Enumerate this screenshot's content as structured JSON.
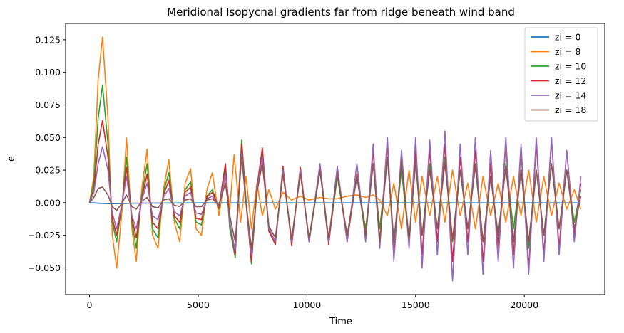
{
  "chart_data": {
    "type": "line",
    "title": "Meridional Isopycnal gradients far from ridge beneath wind band",
    "xlabel": "Time",
    "ylabel": "e",
    "xlim": [
      -1100,
      23700
    ],
    "ylim": [
      -0.0705,
      0.1375
    ],
    "xticks": [
      0,
      5000,
      10000,
      15000,
      20000
    ],
    "xtick_labels": [
      "0",
      "5000",
      "10000",
      "15000",
      "20000"
    ],
    "yticks": [
      -0.05,
      -0.025,
      0.0,
      0.025,
      0.05,
      0.075,
      0.1,
      0.125
    ],
    "ytick_labels": [
      "−0.050",
      "−0.025",
      "0.000",
      "0.025",
      "0.050",
      "0.075",
      "0.100",
      "0.125"
    ],
    "grid": false,
    "legend_position": "top-right",
    "series": [
      {
        "name": "zi = 0",
        "color": "#1f77b4",
        "x": [
          0,
          200,
          400,
          600,
          800,
          1000,
          1500,
          2000,
          3000,
          5000,
          8000,
          12000,
          16000,
          20000,
          22600
        ],
        "y": [
          0.0,
          -0.0002,
          -0.0004,
          -0.0006,
          -0.0007,
          -0.0008,
          -0.0006,
          -0.0004,
          -0.0003,
          -0.0002,
          -0.0002,
          -0.0002,
          -0.0002,
          -0.0002,
          -0.0002
        ]
      },
      {
        "name": "zi = 8",
        "color": "#ff7f0e",
        "x": [
          0,
          200,
          400,
          600,
          850,
          1050,
          1250,
          1500,
          1700,
          1950,
          2150,
          2400,
          2650,
          2900,
          3150,
          3400,
          3650,
          3900,
          4150,
          4400,
          4650,
          4900,
          5150,
          5400,
          5650,
          5950,
          6250,
          6450,
          6650,
          6950,
          7200,
          7450,
          7700,
          7950,
          8250,
          8550,
          8900,
          9300,
          9700,
          10100,
          10600,
          11000,
          11400,
          11850,
          12300,
          12700,
          13050,
          13350,
          13700,
          14000,
          14350,
          14700,
          15000,
          15300,
          15650,
          16000,
          16350,
          16700,
          17050,
          17400,
          17750,
          18100,
          18450,
          18800,
          19150,
          19500,
          19850,
          20200,
          20550,
          20900,
          21250,
          21600,
          21950,
          22300,
          22600
        ],
        "y": [
          0.0,
          0.02,
          0.095,
          0.127,
          0.065,
          -0.025,
          -0.05,
          -0.005,
          0.05,
          -0.02,
          -0.045,
          0.01,
          0.041,
          -0.025,
          -0.035,
          0.01,
          0.033,
          -0.015,
          -0.03,
          0.015,
          0.026,
          -0.02,
          -0.025,
          0.01,
          0.023,
          -0.01,
          0.022,
          -0.005,
          0.037,
          -0.015,
          0.02,
          -0.02,
          0.015,
          -0.01,
          0.01,
          -0.005,
          0.008,
          0.002,
          0.005,
          0.002,
          0.004,
          0.003,
          0.003,
          0.005,
          0.006,
          0.004,
          0.006,
          0.002,
          -0.01,
          0.015,
          -0.02,
          0.025,
          -0.015,
          0.02,
          -0.01,
          0.02,
          -0.015,
          0.025,
          -0.01,
          0.015,
          -0.02,
          0.02,
          -0.01,
          0.015,
          -0.015,
          0.02,
          -0.01,
          0.025,
          -0.015,
          0.02,
          -0.01,
          0.015,
          -0.005,
          0.01,
          -0.005
        ]
      },
      {
        "name": "zi = 10",
        "color": "#2ca02c",
        "x": [
          0,
          200,
          400,
          600,
          850,
          1050,
          1250,
          1500,
          1700,
          1950,
          2150,
          2400,
          2650,
          2900,
          3150,
          3400,
          3650,
          3900,
          4150,
          4400,
          4650,
          4900,
          5150,
          5400,
          5650,
          5950,
          6250,
          6450,
          6700,
          7000,
          7200,
          7450,
          7700,
          7950,
          8250,
          8550,
          8900,
          9300,
          9700,
          10100,
          10600,
          11000,
          11400,
          11850,
          12300,
          12700,
          13050,
          13350,
          13700,
          14000,
          14350,
          14700,
          15000,
          15300,
          15650,
          16000,
          16350,
          16700,
          17050,
          17400,
          17750,
          18100,
          18450,
          18800,
          19150,
          19500,
          19850,
          20200,
          20550,
          20900,
          21250,
          21600,
          21950,
          22300,
          22600
        ],
        "y": [
          0.0,
          0.015,
          0.065,
          0.09,
          0.045,
          -0.015,
          -0.03,
          0.0,
          0.035,
          -0.015,
          -0.035,
          0.005,
          0.03,
          -0.02,
          -0.027,
          0.008,
          0.023,
          -0.012,
          -0.02,
          0.01,
          0.016,
          -0.015,
          -0.017,
          0.005,
          0.01,
          -0.005,
          0.028,
          -0.02,
          -0.042,
          0.048,
          0.002,
          -0.047,
          0.01,
          0.04,
          -0.02,
          -0.03,
          0.025,
          -0.03,
          0.025,
          -0.03,
          0.025,
          -0.03,
          0.02,
          -0.025,
          0.02,
          -0.02,
          0.03,
          -0.02,
          0.035,
          -0.03,
          0.025,
          -0.03,
          0.035,
          -0.025,
          0.03,
          -0.02,
          0.035,
          -0.03,
          0.025,
          -0.02,
          0.03,
          -0.03,
          0.02,
          -0.025,
          0.03,
          -0.02,
          0.025,
          -0.035,
          0.025,
          -0.025,
          0.03,
          -0.02,
          0.025,
          -0.015,
          0.01
        ]
      },
      {
        "name": "zi = 12",
        "color": "#d62728",
        "x": [
          0,
          200,
          400,
          600,
          850,
          1050,
          1250,
          1500,
          1700,
          1950,
          2150,
          2400,
          2650,
          2900,
          3150,
          3400,
          3650,
          3900,
          4150,
          4400,
          4650,
          4900,
          5150,
          5400,
          5650,
          5950,
          6250,
          6450,
          6700,
          7000,
          7200,
          7450,
          7700,
          7950,
          8250,
          8550,
          8900,
          9300,
          9700,
          10100,
          10600,
          11000,
          11400,
          11850,
          12300,
          12700,
          13050,
          13350,
          13700,
          14000,
          14350,
          14700,
          15000,
          15300,
          15650,
          16000,
          16350,
          16700,
          17050,
          17400,
          17750,
          18100,
          18450,
          18800,
          19150,
          19500,
          19850,
          20200,
          20550,
          20900,
          21250,
          21600,
          21950,
          22300,
          22600
        ],
        "y": [
          0.0,
          0.01,
          0.045,
          0.063,
          0.035,
          -0.012,
          -0.025,
          0.0,
          0.027,
          -0.012,
          -0.027,
          0.003,
          0.022,
          -0.015,
          -0.02,
          0.006,
          0.017,
          -0.01,
          -0.015,
          0.008,
          0.012,
          -0.012,
          -0.013,
          0.004,
          0.008,
          -0.004,
          0.03,
          -0.015,
          -0.04,
          0.045,
          0.0,
          -0.045,
          0.012,
          0.042,
          -0.022,
          -0.032,
          0.028,
          -0.033,
          0.027,
          -0.03,
          0.028,
          -0.032,
          0.025,
          -0.03,
          0.022,
          -0.025,
          0.04,
          -0.03,
          0.045,
          -0.04,
          0.035,
          -0.03,
          0.04,
          -0.04,
          0.04,
          -0.03,
          0.045,
          -0.045,
          0.035,
          -0.03,
          0.04,
          -0.045,
          0.03,
          -0.035,
          0.045,
          -0.04,
          0.04,
          -0.05,
          0.045,
          -0.04,
          0.048,
          -0.035,
          0.04,
          -0.025,
          0.015
        ]
      },
      {
        "name": "zi = 14",
        "color": "#9467bd",
        "x": [
          0,
          200,
          400,
          600,
          850,
          1050,
          1250,
          1500,
          1700,
          1950,
          2150,
          2400,
          2650,
          2900,
          3150,
          3400,
          3650,
          3900,
          4150,
          4400,
          4650,
          4900,
          5150,
          5400,
          5650,
          5950,
          6250,
          6450,
          6700,
          7000,
          7200,
          7450,
          7700,
          7950,
          8250,
          8550,
          8900,
          9300,
          9700,
          10100,
          10600,
          11000,
          11400,
          11850,
          12300,
          12700,
          13050,
          13350,
          13700,
          14000,
          14350,
          14700,
          15000,
          15300,
          15650,
          16000,
          16350,
          16700,
          17050,
          17400,
          17750,
          18100,
          18450,
          18800,
          19150,
          19500,
          19850,
          20200,
          20550,
          20900,
          21250,
          21600,
          21950,
          22300,
          22600
        ],
        "y": [
          0.0,
          0.008,
          0.03,
          0.043,
          0.025,
          -0.008,
          -0.02,
          0.0,
          0.02,
          -0.01,
          -0.02,
          0.002,
          0.015,
          -0.01,
          -0.013,
          0.004,
          0.011,
          -0.007,
          -0.01,
          0.005,
          0.008,
          -0.008,
          -0.009,
          0.003,
          0.005,
          -0.003,
          0.022,
          -0.015,
          -0.037,
          0.038,
          0.0,
          -0.04,
          0.01,
          0.035,
          -0.02,
          -0.03,
          0.025,
          -0.03,
          0.025,
          -0.03,
          0.03,
          -0.03,
          0.028,
          -0.03,
          0.03,
          -0.03,
          0.045,
          -0.035,
          0.05,
          -0.045,
          0.04,
          -0.035,
          0.05,
          -0.05,
          0.048,
          -0.04,
          0.055,
          -0.06,
          0.045,
          -0.04,
          0.05,
          -0.055,
          0.04,
          -0.045,
          0.05,
          -0.05,
          0.045,
          -0.055,
          0.05,
          -0.045,
          0.05,
          -0.04,
          0.04,
          -0.03,
          0.02
        ]
      },
      {
        "name": "zi = 18",
        "color": "#8c564b",
        "x": [
          0,
          200,
          400,
          600,
          850,
          1050,
          1250,
          1500,
          1700,
          1950,
          2150,
          2400,
          2650,
          2900,
          3150,
          3400,
          3650,
          3900,
          4150,
          4400,
          4650,
          4900,
          5150,
          5400,
          5650,
          5950,
          6250,
          6450,
          6700,
          7000,
          7200,
          7450,
          7700,
          7950,
          8250,
          8550,
          8900,
          9300,
          9700,
          10100,
          10600,
          11000,
          11400,
          11850,
          12300,
          12700,
          13050,
          13350,
          13700,
          14000,
          14350,
          14700,
          15000,
          15300,
          15650,
          16000,
          16350,
          16700,
          17050,
          17400,
          17750,
          18100,
          18450,
          18800,
          19150,
          19500,
          19850,
          20200,
          20550,
          20900,
          21250,
          21600,
          21950,
          22300,
          22600
        ],
        "y": [
          0.0,
          0.004,
          0.011,
          0.012,
          0.006,
          -0.003,
          -0.006,
          0.0,
          0.006,
          -0.003,
          -0.005,
          0.001,
          0.004,
          -0.003,
          -0.004,
          0.002,
          0.003,
          -0.002,
          -0.003,
          0.002,
          0.003,
          -0.003,
          -0.003,
          0.002,
          0.003,
          -0.002,
          0.015,
          -0.01,
          -0.03,
          0.035,
          0.0,
          -0.035,
          0.008,
          0.03,
          -0.018,
          -0.027,
          0.022,
          -0.028,
          0.022,
          -0.027,
          0.024,
          -0.027,
          0.022,
          -0.025,
          0.02,
          -0.025,
          0.03,
          -0.03,
          0.035,
          -0.03,
          0.03,
          -0.028,
          0.03,
          -0.025,
          0.025,
          -0.02,
          0.03,
          -0.028,
          0.025,
          -0.02,
          0.028,
          -0.03,
          0.02,
          -0.025,
          0.028,
          -0.03,
          0.025,
          -0.03,
          0.025,
          -0.025,
          0.03,
          -0.02,
          0.025,
          -0.02,
          0.005
        ]
      }
    ]
  }
}
